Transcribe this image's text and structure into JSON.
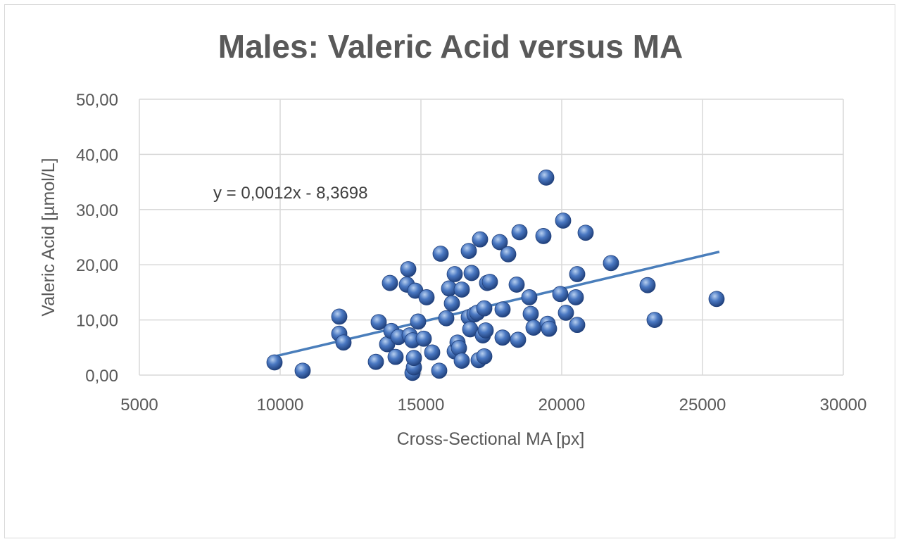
{
  "chart_data": {
    "type": "scatter",
    "title": "Males: Valeric Acid versus MA",
    "xlabel": "Cross-Sectional MA [px]",
    "ylabel": "Valeric Acid [µmol/L]",
    "xlim": [
      5000,
      30000
    ],
    "ylim": [
      0,
      50
    ],
    "xticks": [
      "5000",
      "10000",
      "15000",
      "20000",
      "25000",
      "30000"
    ],
    "yticks": [
      "0,00",
      "10,00",
      "20,00",
      "30,00",
      "40,00",
      "50,00"
    ],
    "grid": true,
    "legend": "none",
    "trendline": {
      "type": "linear",
      "equation": "y = 0,0012x - 8,3698",
      "slope": 0.0012,
      "intercept": -8.3698,
      "x_range": [
        9800,
        25600
      ]
    },
    "colors": {
      "marker": "#4a78c2",
      "marker_highlight": "#b8d0f0",
      "marker_dark": "#1f3f7a",
      "trendline": "#4a7ebb",
      "grid": "#d9d9d9",
      "text": "#595959",
      "title": "#595959"
    },
    "points": [
      {
        "x": 9800,
        "y": 2.3
      },
      {
        "x": 10800,
        "y": 0.8
      },
      {
        "x": 12100,
        "y": 10.6
      },
      {
        "x": 12100,
        "y": 7.5
      },
      {
        "x": 12250,
        "y": 5.9
      },
      {
        "x": 13400,
        "y": 2.4
      },
      {
        "x": 13500,
        "y": 9.6
      },
      {
        "x": 13800,
        "y": 5.6
      },
      {
        "x": 13900,
        "y": 16.7
      },
      {
        "x": 13950,
        "y": 8.0
      },
      {
        "x": 14100,
        "y": 3.3
      },
      {
        "x": 14200,
        "y": 6.9
      },
      {
        "x": 14500,
        "y": 16.4
      },
      {
        "x": 14550,
        "y": 19.2
      },
      {
        "x": 14600,
        "y": 7.2
      },
      {
        "x": 14700,
        "y": 6.3
      },
      {
        "x": 14700,
        "y": 0.4
      },
      {
        "x": 14750,
        "y": 1.4
      },
      {
        "x": 14750,
        "y": 3.1
      },
      {
        "x": 14800,
        "y": 15.3
      },
      {
        "x": 14900,
        "y": 9.7
      },
      {
        "x": 15100,
        "y": 6.6
      },
      {
        "x": 15200,
        "y": 14.1
      },
      {
        "x": 15400,
        "y": 4.1
      },
      {
        "x": 15650,
        "y": 0.8
      },
      {
        "x": 15700,
        "y": 22.0
      },
      {
        "x": 15900,
        "y": 10.3
      },
      {
        "x": 16000,
        "y": 15.7
      },
      {
        "x": 16100,
        "y": 13.0
      },
      {
        "x": 16200,
        "y": 18.3
      },
      {
        "x": 16200,
        "y": 4.3
      },
      {
        "x": 16300,
        "y": 5.9
      },
      {
        "x": 16350,
        "y": 4.9
      },
      {
        "x": 16450,
        "y": 2.6
      },
      {
        "x": 16450,
        "y": 15.5
      },
      {
        "x": 16700,
        "y": 22.5
      },
      {
        "x": 16700,
        "y": 10.5
      },
      {
        "x": 16750,
        "y": 8.3
      },
      {
        "x": 16800,
        "y": 18.5
      },
      {
        "x": 16900,
        "y": 11.0
      },
      {
        "x": 17000,
        "y": 11.3
      },
      {
        "x": 17050,
        "y": 2.7
      },
      {
        "x": 17100,
        "y": 24.6
      },
      {
        "x": 17200,
        "y": 7.2
      },
      {
        "x": 17250,
        "y": 12.1
      },
      {
        "x": 17250,
        "y": 3.4
      },
      {
        "x": 17300,
        "y": 8.1
      },
      {
        "x": 17350,
        "y": 16.7
      },
      {
        "x": 17450,
        "y": 16.9
      },
      {
        "x": 17800,
        "y": 24.1
      },
      {
        "x": 17900,
        "y": 11.9
      },
      {
        "x": 17900,
        "y": 6.8
      },
      {
        "x": 18100,
        "y": 21.9
      },
      {
        "x": 18400,
        "y": 16.4
      },
      {
        "x": 18450,
        "y": 6.4
      },
      {
        "x": 18500,
        "y": 25.9
      },
      {
        "x": 18850,
        "y": 14.1
      },
      {
        "x": 18900,
        "y": 11.1
      },
      {
        "x": 19000,
        "y": 8.6
      },
      {
        "x": 19350,
        "y": 25.2
      },
      {
        "x": 19450,
        "y": 35.8
      },
      {
        "x": 19500,
        "y": 9.3
      },
      {
        "x": 19550,
        "y": 8.4
      },
      {
        "x": 19950,
        "y": 14.7
      },
      {
        "x": 20050,
        "y": 28.0
      },
      {
        "x": 20150,
        "y": 11.3
      },
      {
        "x": 20500,
        "y": 14.1
      },
      {
        "x": 20550,
        "y": 18.3
      },
      {
        "x": 20550,
        "y": 9.1
      },
      {
        "x": 20850,
        "y": 25.8
      },
      {
        "x": 21750,
        "y": 20.3
      },
      {
        "x": 23050,
        "y": 16.3
      },
      {
        "x": 23300,
        "y": 10.0
      },
      {
        "x": 25500,
        "y": 13.8
      }
    ]
  }
}
